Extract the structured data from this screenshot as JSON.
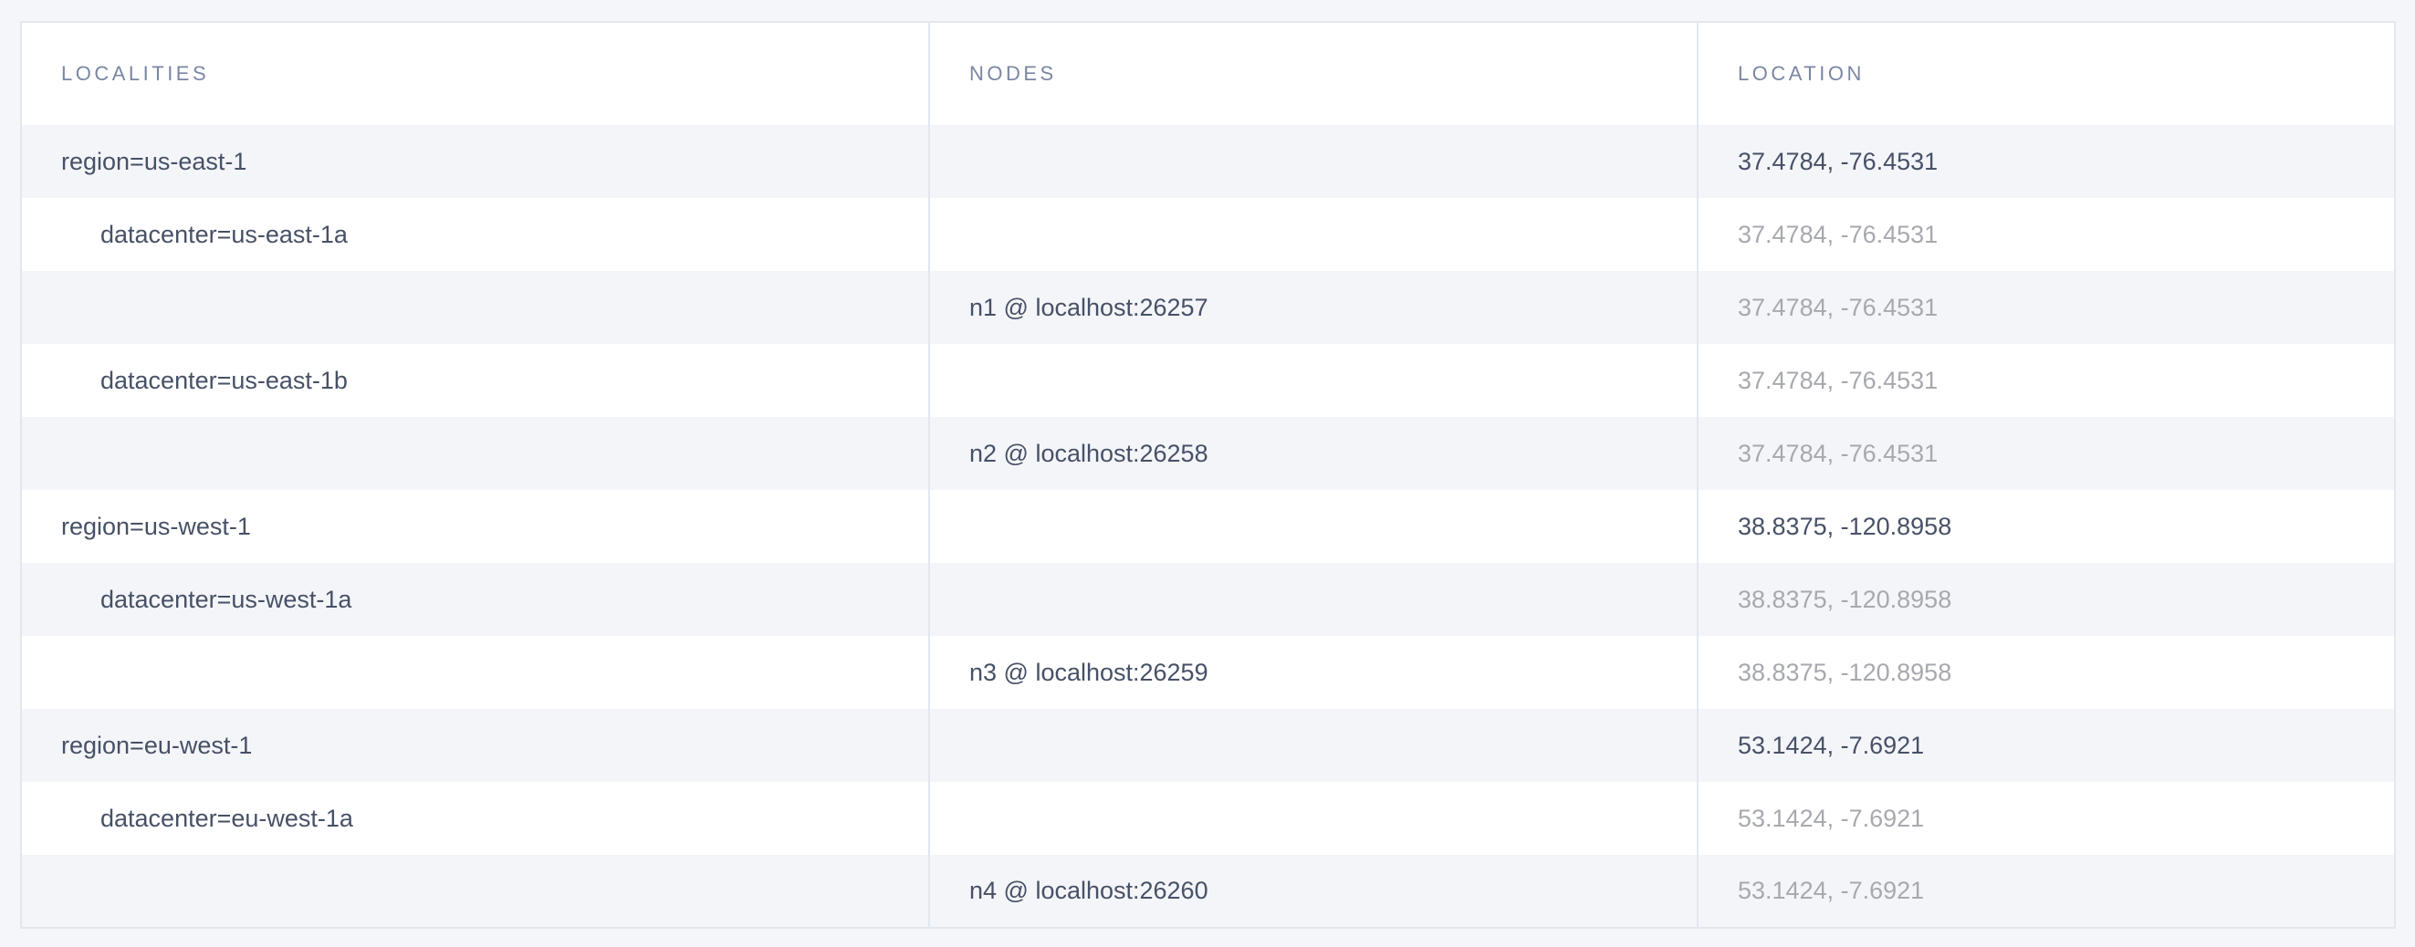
{
  "page": {
    "title": "Localities report table",
    "background_color": "#f5f6fa"
  },
  "colors": {
    "row_white": "#ffffff",
    "row_stripe": "#f4f5f9",
    "table_border": "#e2e7ee",
    "header_text": "#7b86a3",
    "primary_text": "#475166",
    "dimmed_text": "#a7a9ae"
  },
  "table": {
    "columns": [
      {
        "key": "localities",
        "label": "LOCALITIES"
      },
      {
        "key": "nodes",
        "label": "NODES"
      },
      {
        "key": "location",
        "label": "LOCATION"
      }
    ],
    "rows": [
      {
        "type": "region",
        "locality": "region=us-east-1",
        "node": "",
        "location": "37.4784, -76.4531"
      },
      {
        "type": "datacenter",
        "locality": "datacenter=us-east-1a",
        "node": "",
        "location": "37.4784, -76.4531"
      },
      {
        "type": "node",
        "locality": "",
        "node": "n1 @ localhost:26257",
        "location": "37.4784, -76.4531"
      },
      {
        "type": "datacenter",
        "locality": "datacenter=us-east-1b",
        "node": "",
        "location": "37.4784, -76.4531"
      },
      {
        "type": "node",
        "locality": "",
        "node": "n2 @ localhost:26258",
        "location": "37.4784, -76.4531"
      },
      {
        "type": "region",
        "locality": "region=us-west-1",
        "node": "",
        "location": "38.8375, -120.8958"
      },
      {
        "type": "datacenter",
        "locality": "datacenter=us-west-1a",
        "node": "",
        "location": "38.8375, -120.8958"
      },
      {
        "type": "node",
        "locality": "",
        "node": "n3 @ localhost:26259",
        "location": "38.8375, -120.8958"
      },
      {
        "type": "region",
        "locality": "region=eu-west-1",
        "node": "",
        "location": "53.1424, -7.6921"
      },
      {
        "type": "datacenter",
        "locality": "datacenter=eu-west-1a",
        "node": "",
        "location": "53.1424, -7.6921"
      },
      {
        "type": "node",
        "locality": "",
        "node": "n4 @ localhost:26260",
        "location": "53.1424, -7.6921"
      }
    ]
  }
}
